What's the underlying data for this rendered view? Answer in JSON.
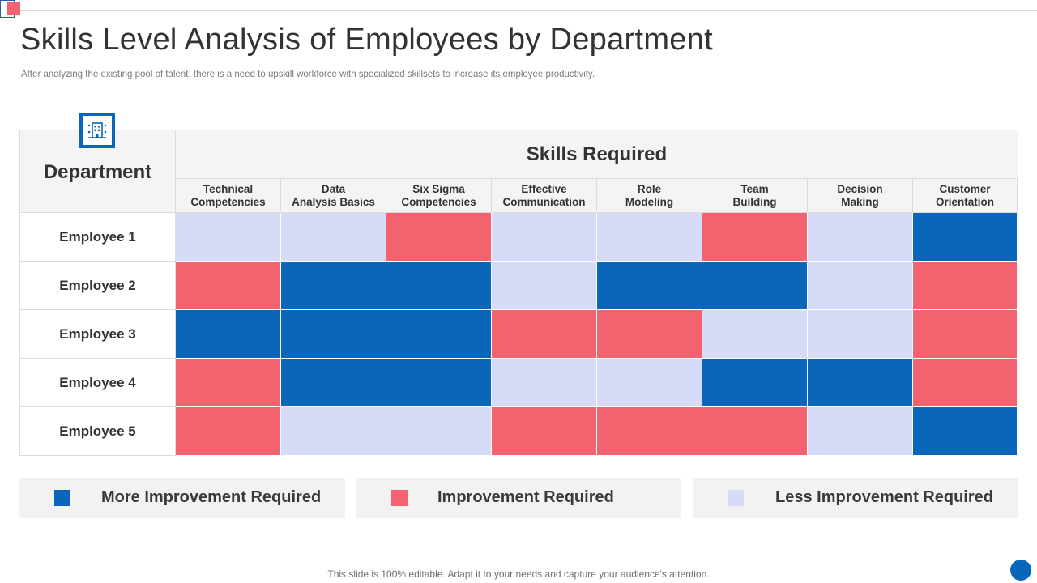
{
  "title": "Skills Level Analysis of Employees by Department",
  "subtitle": "After  analyzing the existing pool of talent, there is a need to upskill workforce with specialized skillsets to increase its employee productivity.",
  "table": {
    "department_label": "Department",
    "skills_label": "Skills Required",
    "columns": [
      "Technical\nCompetencies",
      "Data\nAnalysis Basics",
      "Six Sigma\nCompetencies",
      "Effective\nCommunication",
      "Role\nModeling",
      "Team\nBuilding",
      "Decision\nMaking",
      "Customer\nOrientation"
    ],
    "rows": [
      {
        "label": "Employee 1",
        "levels": [
          "less",
          "less",
          "improve",
          "less",
          "less",
          "improve",
          "less",
          "more"
        ]
      },
      {
        "label": "Employee 2",
        "levels": [
          "improve",
          "more",
          "more",
          "less",
          "more",
          "more",
          "less",
          "improve"
        ]
      },
      {
        "label": "Employee 3",
        "levels": [
          "more",
          "more",
          "more",
          "improve",
          "improve",
          "less",
          "less",
          "improve"
        ]
      },
      {
        "label": "Employee 4",
        "levels": [
          "improve",
          "more",
          "more",
          "less",
          "less",
          "more",
          "more",
          "improve"
        ]
      },
      {
        "label": "Employee 5",
        "levels": [
          "improve",
          "less",
          "less",
          "improve",
          "improve",
          "improve",
          "less",
          "more"
        ]
      }
    ]
  },
  "legend": [
    {
      "key": "more",
      "label": "More Improvement Required",
      "color": "#0a66b8"
    },
    {
      "key": "improve",
      "label": "Improvement Required",
      "color": "#f3626f"
    },
    {
      "key": "less",
      "label": "Less Improvement Required",
      "color": "#d6dbf7"
    }
  ],
  "icon": "building-icon",
  "footer": "This slide is 100% editable. Adapt it to your needs and capture your audience's attention."
}
